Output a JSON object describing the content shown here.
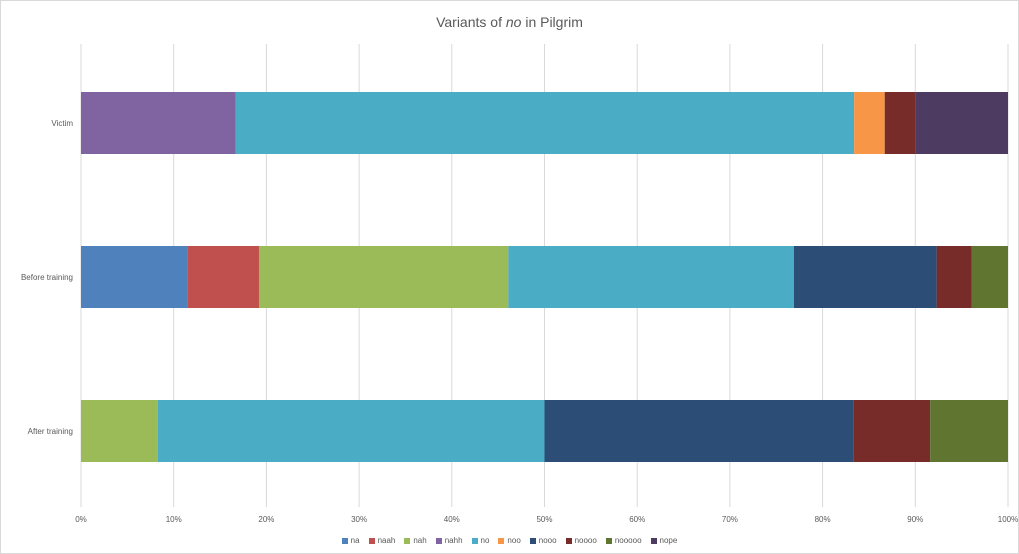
{
  "chart_data": {
    "type": "bar",
    "orientation": "horizontal",
    "stacked": "100%",
    "title": "Variants of no in Pilgrim",
    "title_parts": [
      {
        "text": "Variants of ",
        "italic": false
      },
      {
        "text": "no",
        "italic": true
      },
      {
        "text": " in Pilgrim",
        "italic": false
      }
    ],
    "categories": [
      "Victim",
      "Before training",
      "After training"
    ],
    "x_ticks": [
      "0%",
      "10%",
      "20%",
      "30%",
      "40%",
      "50%",
      "60%",
      "70%",
      "80%",
      "90%",
      "100%"
    ],
    "xlim": [
      0,
      100
    ],
    "grid": true,
    "legend_position": "bottom",
    "series": [
      {
        "name": "na",
        "color": "#4f81bd",
        "values": [
          0,
          11.5,
          0
        ]
      },
      {
        "name": "naah",
        "color": "#c0504d",
        "values": [
          0,
          7.7,
          0
        ]
      },
      {
        "name": "nah",
        "color": "#9bbb59",
        "values": [
          0,
          26.9,
          8.3
        ]
      },
      {
        "name": "nahh",
        "color": "#8064a2",
        "values": [
          16.7,
          0,
          0
        ]
      },
      {
        "name": "no",
        "color": "#4bacc6",
        "values": [
          66.7,
          30.8,
          41.7
        ]
      },
      {
        "name": "noo",
        "color": "#f79646",
        "values": [
          3.3,
          0,
          0
        ]
      },
      {
        "name": "nooo",
        "color": "#2c4d75",
        "values": [
          0,
          15.4,
          33.3
        ]
      },
      {
        "name": "noooo",
        "color": "#772c2a",
        "values": [
          3.3,
          3.8,
          8.3
        ]
      },
      {
        "name": "nooooo",
        "color": "#5f7530",
        "values": [
          0,
          3.9,
          8.4
        ]
      },
      {
        "name": "nope",
        "color": "#4d3b62",
        "values": [
          10.0,
          0,
          0
        ]
      }
    ]
  }
}
